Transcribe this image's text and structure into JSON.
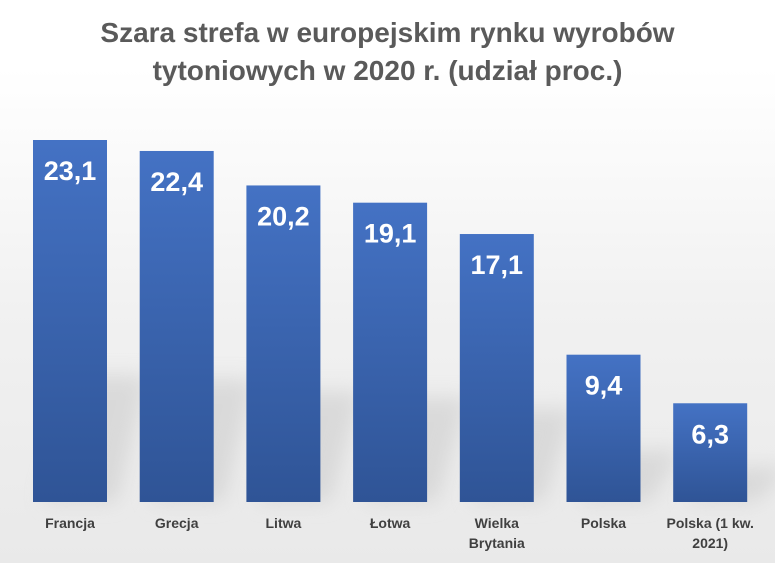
{
  "chart_data": {
    "type": "bar",
    "title_lines": [
      "Szara strefa w europejskim rynku wyrobów",
      "tytoniowych w 2020 r. (udział proc.)"
    ],
    "categories": [
      [
        "Francja"
      ],
      [
        "Grecja"
      ],
      [
        "Litwa"
      ],
      [
        "Łotwa"
      ],
      [
        "Wielka",
        "Brytania"
      ],
      [
        "Polska"
      ],
      [
        "Polska (1 kw.",
        "2021)"
      ]
    ],
    "values": [
      23.1,
      22.4,
      20.2,
      19.1,
      17.1,
      9.4,
      6.3
    ],
    "value_labels": [
      "23,1",
      "22,4",
      "20,2",
      "19,1",
      "17,1",
      "9,4",
      "6,3"
    ],
    "bar_color": "#4472c4",
    "bar_color_dark": "#2f5496",
    "ylim": [
      0,
      23.1
    ],
    "grid": false,
    "legend": "none"
  }
}
